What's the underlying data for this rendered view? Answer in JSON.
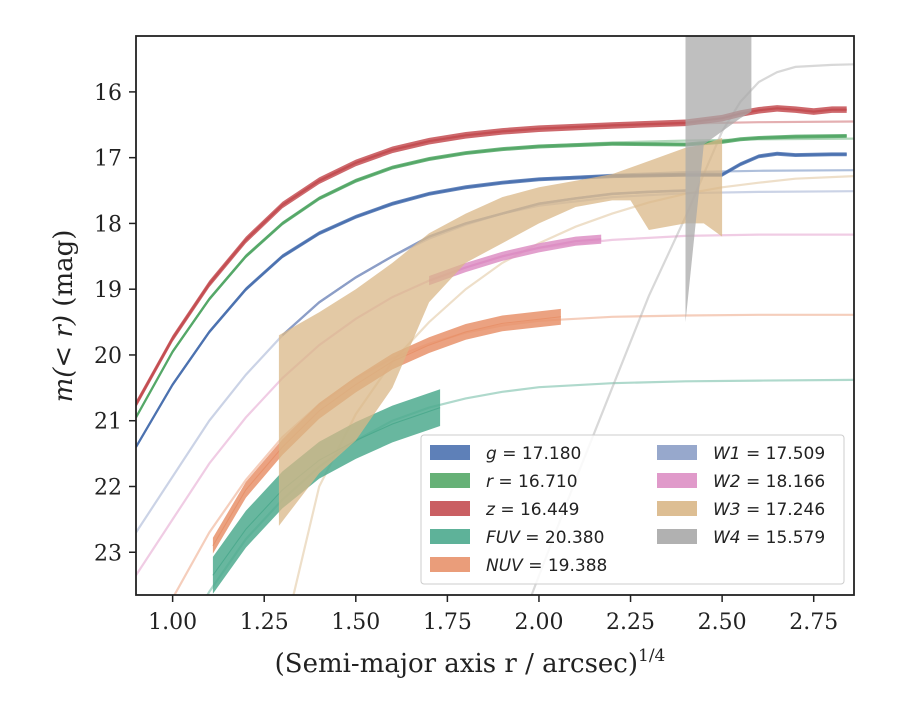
{
  "chart_data": {
    "type": "line",
    "title": "",
    "xlabel": "(Semi-major axis r / arcsec)",
    "xlabel_exponent": "1/4",
    "ylabel_prefix": "m(< r)",
    "ylabel_unit": " (mag)",
    "xlim": [
      0.9,
      2.86
    ],
    "ylim": [
      23.65,
      15.15
    ],
    "y_inverted": true,
    "x_ticks": [
      1.0,
      1.25,
      1.5,
      1.75,
      2.0,
      2.25,
      2.5,
      2.75
    ],
    "x_tick_labels": [
      "1.00",
      "1.25",
      "1.50",
      "1.75",
      "2.00",
      "2.25",
      "2.50",
      "2.75"
    ],
    "y_ticks": [
      16,
      17,
      18,
      19,
      20,
      21,
      22,
      23
    ],
    "y_tick_labels": [
      "16",
      "17",
      "18",
      "19",
      "20",
      "21",
      "22",
      "23"
    ],
    "grid": false,
    "legend_position": "lower-right",
    "legend_columns": 2,
    "series": [
      {
        "name": "g = 17.180",
        "band": "g",
        "legend_value": "17.180",
        "color": "#4c72b0",
        "model": [
          [
            0.9,
            21.4
          ],
          [
            1.0,
            20.45
          ],
          [
            1.1,
            19.65
          ],
          [
            1.2,
            19.0
          ],
          [
            1.3,
            18.5
          ],
          [
            1.4,
            18.15
          ],
          [
            1.5,
            17.9
          ],
          [
            1.6,
            17.7
          ],
          [
            1.7,
            17.55
          ],
          [
            1.8,
            17.45
          ],
          [
            1.9,
            17.38
          ],
          [
            2.0,
            17.32
          ],
          [
            2.2,
            17.26
          ],
          [
            2.4,
            17.22
          ],
          [
            2.6,
            17.2
          ],
          [
            2.86,
            17.19
          ]
        ],
        "data": [
          [
            0.9,
            21.4
          ],
          [
            1.0,
            20.45
          ],
          [
            1.1,
            19.65
          ],
          [
            1.2,
            19.0
          ],
          [
            1.3,
            18.5
          ],
          [
            1.4,
            18.15
          ],
          [
            1.5,
            17.9
          ],
          [
            1.6,
            17.7
          ],
          [
            1.7,
            17.55
          ],
          [
            1.8,
            17.45
          ],
          [
            1.9,
            17.38
          ],
          [
            2.0,
            17.33
          ],
          [
            2.2,
            17.28
          ],
          [
            2.4,
            17.26
          ],
          [
            2.5,
            17.26
          ],
          [
            2.55,
            17.1
          ],
          [
            2.6,
            16.98
          ],
          [
            2.65,
            16.94
          ],
          [
            2.7,
            16.96
          ],
          [
            2.8,
            16.95
          ],
          [
            2.84,
            16.95
          ]
        ],
        "band_hw": 0.03
      },
      {
        "name": "r = 16.710",
        "band": "r",
        "legend_value": "16.710",
        "color": "#55a868",
        "model": [
          [
            0.9,
            20.95
          ],
          [
            1.0,
            19.95
          ],
          [
            1.1,
            19.15
          ],
          [
            1.2,
            18.5
          ],
          [
            1.3,
            18.0
          ],
          [
            1.4,
            17.62
          ],
          [
            1.5,
            17.35
          ],
          [
            1.6,
            17.15
          ],
          [
            1.7,
            17.02
          ],
          [
            1.8,
            16.93
          ],
          [
            1.9,
            16.87
          ],
          [
            2.0,
            16.82
          ],
          [
            2.2,
            16.77
          ],
          [
            2.4,
            16.74
          ],
          [
            2.6,
            16.72
          ],
          [
            2.86,
            16.71
          ]
        ],
        "data": [
          [
            0.9,
            20.95
          ],
          [
            1.0,
            19.95
          ],
          [
            1.1,
            19.15
          ],
          [
            1.2,
            18.5
          ],
          [
            1.3,
            18.0
          ],
          [
            1.4,
            17.62
          ],
          [
            1.5,
            17.35
          ],
          [
            1.6,
            17.15
          ],
          [
            1.7,
            17.02
          ],
          [
            1.8,
            16.93
          ],
          [
            1.9,
            16.87
          ],
          [
            2.0,
            16.83
          ],
          [
            2.2,
            16.79
          ],
          [
            2.4,
            16.8
          ],
          [
            2.5,
            16.76
          ],
          [
            2.55,
            16.72
          ],
          [
            2.6,
            16.7
          ],
          [
            2.7,
            16.68
          ],
          [
            2.84,
            16.67
          ]
        ],
        "band_hw": 0.03
      },
      {
        "name": "z = 16.449",
        "band": "z",
        "legend_value": "16.449",
        "color": "#c44e52",
        "model": [
          [
            0.9,
            20.75
          ],
          [
            1.0,
            19.75
          ],
          [
            1.1,
            18.92
          ],
          [
            1.2,
            18.25
          ],
          [
            1.3,
            17.72
          ],
          [
            1.4,
            17.35
          ],
          [
            1.5,
            17.08
          ],
          [
            1.6,
            16.88
          ],
          [
            1.7,
            16.75
          ],
          [
            1.8,
            16.66
          ],
          [
            1.9,
            16.6
          ],
          [
            2.0,
            16.56
          ],
          [
            2.2,
            16.51
          ],
          [
            2.4,
            16.48
          ],
          [
            2.6,
            16.46
          ],
          [
            2.86,
            16.45
          ]
        ],
        "data": [
          [
            0.9,
            20.75
          ],
          [
            1.0,
            19.75
          ],
          [
            1.1,
            18.92
          ],
          [
            1.2,
            18.25
          ],
          [
            1.3,
            17.72
          ],
          [
            1.4,
            17.35
          ],
          [
            1.5,
            17.08
          ],
          [
            1.6,
            16.88
          ],
          [
            1.7,
            16.75
          ],
          [
            1.8,
            16.66
          ],
          [
            1.9,
            16.6
          ],
          [
            2.0,
            16.56
          ],
          [
            2.2,
            16.51
          ],
          [
            2.4,
            16.47
          ],
          [
            2.5,
            16.4
          ],
          [
            2.55,
            16.33
          ],
          [
            2.6,
            16.28
          ],
          [
            2.65,
            16.25
          ],
          [
            2.7,
            16.27
          ],
          [
            2.75,
            16.3
          ],
          [
            2.8,
            16.27
          ],
          [
            2.84,
            16.27
          ]
        ],
        "band_hw": 0.05
      },
      {
        "name": "FUV = 20.380",
        "band": "FUV",
        "legend_value": "20.380",
        "color": "#4daa8e",
        "model": [
          [
            0.9,
            25.8
          ],
          [
            1.0,
            24.6
          ],
          [
            1.1,
            23.6
          ],
          [
            1.2,
            22.8
          ],
          [
            1.3,
            22.2
          ],
          [
            1.4,
            21.7
          ],
          [
            1.5,
            21.3
          ],
          [
            1.6,
            21.0
          ],
          [
            1.7,
            20.8
          ],
          [
            1.8,
            20.66
          ],
          [
            1.9,
            20.56
          ],
          [
            2.0,
            20.49
          ],
          [
            2.2,
            20.43
          ],
          [
            2.4,
            20.4
          ],
          [
            2.6,
            20.39
          ],
          [
            2.86,
            20.38
          ]
        ],
        "data": [
          [
            1.11,
            23.35
          ],
          [
            1.2,
            22.65
          ],
          [
            1.3,
            22.05
          ],
          [
            1.4,
            21.6
          ],
          [
            1.5,
            21.3
          ],
          [
            1.6,
            21.05
          ],
          [
            1.73,
            20.8
          ]
        ],
        "band_hw": 0.28
      },
      {
        "name": "NUV = 19.388",
        "band": "NUV",
        "legend_value": "19.388",
        "color": "#e8926b",
        "model": [
          [
            0.9,
            24.8
          ],
          [
            1.0,
            23.7
          ],
          [
            1.1,
            22.7
          ],
          [
            1.2,
            21.9
          ],
          [
            1.3,
            21.25
          ],
          [
            1.4,
            20.75
          ],
          [
            1.5,
            20.35
          ],
          [
            1.6,
            20.05
          ],
          [
            1.7,
            19.83
          ],
          [
            1.8,
            19.66
          ],
          [
            1.9,
            19.55
          ],
          [
            2.0,
            19.48
          ],
          [
            2.2,
            19.42
          ],
          [
            2.4,
            19.4
          ],
          [
            2.6,
            19.39
          ],
          [
            2.86,
            19.39
          ]
        ],
        "data": [
          [
            1.11,
            22.9
          ],
          [
            1.2,
            22.05
          ],
          [
            1.3,
            21.4
          ],
          [
            1.4,
            20.85
          ],
          [
            1.5,
            20.45
          ],
          [
            1.6,
            20.1
          ],
          [
            1.7,
            19.85
          ],
          [
            1.8,
            19.65
          ],
          [
            1.9,
            19.52
          ],
          [
            2.06,
            19.42
          ]
        ],
        "band_hw": 0.12
      },
      {
        "name": "W1 = 17.509",
        "band": "W1",
        "legend_value": "17.509",
        "color": "#8c9ec7",
        "model": [
          [
            0.9,
            22.7
          ],
          [
            1.0,
            21.85
          ],
          [
            1.1,
            21.0
          ],
          [
            1.2,
            20.3
          ],
          [
            1.3,
            19.7
          ],
          [
            1.4,
            19.2
          ],
          [
            1.5,
            18.82
          ],
          [
            1.6,
            18.5
          ],
          [
            1.7,
            18.23
          ],
          [
            1.8,
            18.02
          ],
          [
            1.9,
            17.85
          ],
          [
            2.0,
            17.73
          ],
          [
            2.2,
            17.6
          ],
          [
            2.4,
            17.54
          ],
          [
            2.6,
            17.52
          ],
          [
            2.86,
            17.51
          ]
        ],
        "data": [
          [
            1.3,
            19.7
          ],
          [
            1.4,
            19.2
          ],
          [
            1.5,
            18.82
          ],
          [
            1.6,
            18.5
          ],
          [
            1.7,
            18.2
          ],
          [
            1.8,
            18.0
          ],
          [
            1.9,
            17.85
          ],
          [
            2.0,
            17.7
          ],
          [
            2.1,
            17.62
          ],
          [
            2.2,
            17.55
          ],
          [
            2.3,
            17.52
          ],
          [
            2.4,
            17.5
          ]
        ],
        "band_hw": 0.02
      },
      {
        "name": "W2 = 18.166",
        "band": "W2",
        "legend_value": "18.166",
        "color": "#dd8fc4",
        "model": [
          [
            0.9,
            23.35
          ],
          [
            1.0,
            22.5
          ],
          [
            1.1,
            21.65
          ],
          [
            1.2,
            20.95
          ],
          [
            1.3,
            20.35
          ],
          [
            1.4,
            19.85
          ],
          [
            1.5,
            19.45
          ],
          [
            1.6,
            19.12
          ],
          [
            1.7,
            18.87
          ],
          [
            1.8,
            18.67
          ],
          [
            1.9,
            18.5
          ],
          [
            2.0,
            18.37
          ],
          [
            2.2,
            18.25
          ],
          [
            2.4,
            18.19
          ],
          [
            2.6,
            18.17
          ],
          [
            2.86,
            18.17
          ]
        ],
        "data": [
          [
            1.7,
            18.87
          ],
          [
            1.8,
            18.67
          ],
          [
            1.9,
            18.5
          ],
          [
            2.0,
            18.37
          ],
          [
            2.1,
            18.27
          ],
          [
            2.17,
            18.24
          ]
        ],
        "band_hw": 0.07
      },
      {
        "name": "W3 = 17.246",
        "band": "W3",
        "legend_value": "17.246",
        "color": "#d9b787",
        "model": [
          [
            1.33,
            23.65
          ],
          [
            1.4,
            22.0
          ],
          [
            1.5,
            20.9
          ],
          [
            1.6,
            20.1
          ],
          [
            1.7,
            19.5
          ],
          [
            1.8,
            19.0
          ],
          [
            1.9,
            18.6
          ],
          [
            2.0,
            18.3
          ],
          [
            2.1,
            18.05
          ],
          [
            2.2,
            17.85
          ],
          [
            2.3,
            17.68
          ],
          [
            2.4,
            17.55
          ],
          [
            2.5,
            17.45
          ],
          [
            2.6,
            17.38
          ],
          [
            2.7,
            17.32
          ],
          [
            2.86,
            17.28
          ]
        ],
        "band_low": [
          [
            1.29,
            22.6
          ],
          [
            1.4,
            21.8
          ],
          [
            1.5,
            21.3
          ],
          [
            1.6,
            20.5
          ],
          [
            1.7,
            19.2
          ],
          [
            1.8,
            18.6
          ],
          [
            1.9,
            18.3
          ],
          [
            2.0,
            18.0
          ],
          [
            2.1,
            17.75
          ],
          [
            2.2,
            17.65
          ],
          [
            2.25,
            17.65
          ],
          [
            2.3,
            18.1
          ],
          [
            2.4,
            18.0
          ],
          [
            2.45,
            18.0
          ],
          [
            2.5,
            18.2
          ]
        ],
        "band_high": [
          [
            1.29,
            19.7
          ],
          [
            1.4,
            19.35
          ],
          [
            1.5,
            19.0
          ],
          [
            1.6,
            18.6
          ],
          [
            1.7,
            18.15
          ],
          [
            1.8,
            17.85
          ],
          [
            1.9,
            17.6
          ],
          [
            2.0,
            17.45
          ],
          [
            2.1,
            17.35
          ],
          [
            2.2,
            17.25
          ],
          [
            2.3,
            17.05
          ],
          [
            2.4,
            16.85
          ],
          [
            2.45,
            16.8
          ],
          [
            2.5,
            16.7
          ]
        ]
      },
      {
        "name": "W4 = 15.579",
        "band": "W4",
        "legend_value": "15.579",
        "color": "#a9a9a9",
        "model": [
          [
            1.98,
            23.65
          ],
          [
            2.1,
            21.9
          ],
          [
            2.2,
            20.5
          ],
          [
            2.3,
            19.1
          ],
          [
            2.4,
            17.9
          ],
          [
            2.45,
            17.25
          ],
          [
            2.5,
            16.6
          ],
          [
            2.55,
            16.15
          ],
          [
            2.6,
            15.85
          ],
          [
            2.65,
            15.7
          ],
          [
            2.7,
            15.62
          ],
          [
            2.8,
            15.59
          ],
          [
            2.86,
            15.58
          ]
        ],
        "band_low": [
          [
            2.4,
            19.5
          ],
          [
            2.45,
            16.8
          ],
          [
            2.5,
            16.6
          ],
          [
            2.55,
            16.4
          ],
          [
            2.58,
            16.3
          ]
        ],
        "band_high": [
          [
            2.4,
            15.15
          ],
          [
            2.45,
            15.15
          ],
          [
            2.5,
            15.15
          ],
          [
            2.55,
            15.15
          ],
          [
            2.58,
            15.15
          ]
        ]
      }
    ]
  }
}
